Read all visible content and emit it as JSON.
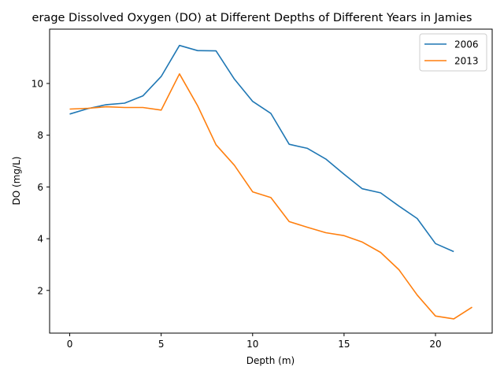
{
  "chart_data": {
    "type": "line",
    "title": "Average Dissolved Oxygen (DO) at Different Depths of Different Years in Jamieson",
    "title_visible": "erage Dissolved Oxygen (DO) at Different Depths of Different Years in Jamies",
    "xlabel": "Depth (m)",
    "ylabel": "DO (mg/L)",
    "xlim": [
      -1.1,
      23.1
    ],
    "ylim": [
      0.35,
      12.1
    ],
    "xticks": [
      0,
      5,
      10,
      15,
      20
    ],
    "yticks": [
      2,
      4,
      6,
      8,
      10
    ],
    "grid": false,
    "legend_position": "top-right",
    "series": [
      {
        "name": "2006",
        "color": "#1f77b4",
        "x": [
          0,
          1,
          2,
          3,
          4,
          5,
          6,
          7,
          8,
          9,
          10,
          11,
          12,
          13,
          14,
          15,
          16,
          17,
          18,
          19,
          20,
          21
        ],
        "y": [
          8.82,
          9.03,
          9.18,
          9.24,
          9.52,
          10.27,
          11.47,
          11.27,
          11.26,
          10.17,
          9.31,
          8.84,
          7.65,
          7.49,
          7.08,
          6.49,
          5.93,
          5.77,
          5.26,
          4.78,
          3.81,
          3.5
        ]
      },
      {
        "name": "2013",
        "color": "#ff7f0e",
        "x": [
          0,
          1,
          2,
          3,
          4,
          5,
          6,
          7,
          8,
          9,
          10,
          11,
          12,
          13,
          14,
          15,
          16,
          17,
          18,
          19,
          20,
          21,
          22
        ],
        "y": [
          9.01,
          9.04,
          9.1,
          9.07,
          9.07,
          8.97,
          10.37,
          9.13,
          7.63,
          6.84,
          5.81,
          5.59,
          4.66,
          4.44,
          4.23,
          4.12,
          3.87,
          3.47,
          2.8,
          1.82,
          1.01,
          0.9,
          1.35
        ]
      }
    ]
  }
}
